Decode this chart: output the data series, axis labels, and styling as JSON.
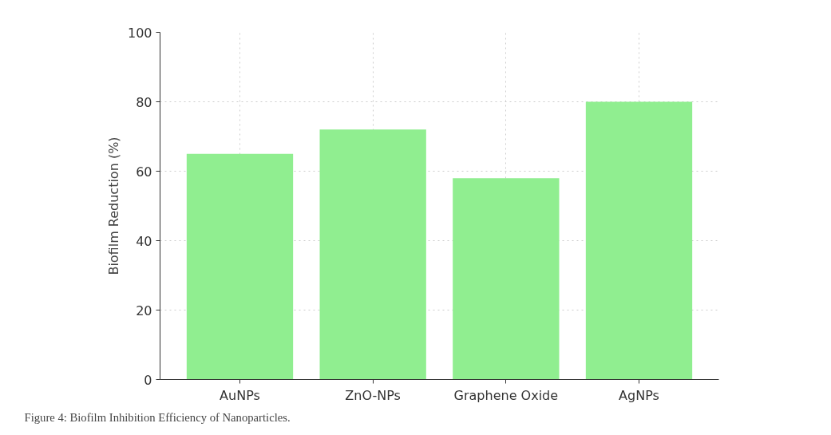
{
  "chart_data": {
    "type": "bar",
    "ylabel": "Biofilm Reduction (%)",
    "categories": [
      "AuNPs",
      "ZnO-NPs",
      "Graphene Oxide",
      "AgNPs"
    ],
    "values": [
      65,
      72,
      58,
      80
    ],
    "color": "#90ee90",
    "ylim": [
      0,
      100
    ],
    "yticks": [
      0,
      20,
      40,
      60,
      80,
      100
    ],
    "grid": true,
    "annotations": [
      "Figure 4: Biofilm Inhibition Efficiency of Nanoparticles."
    ]
  }
}
